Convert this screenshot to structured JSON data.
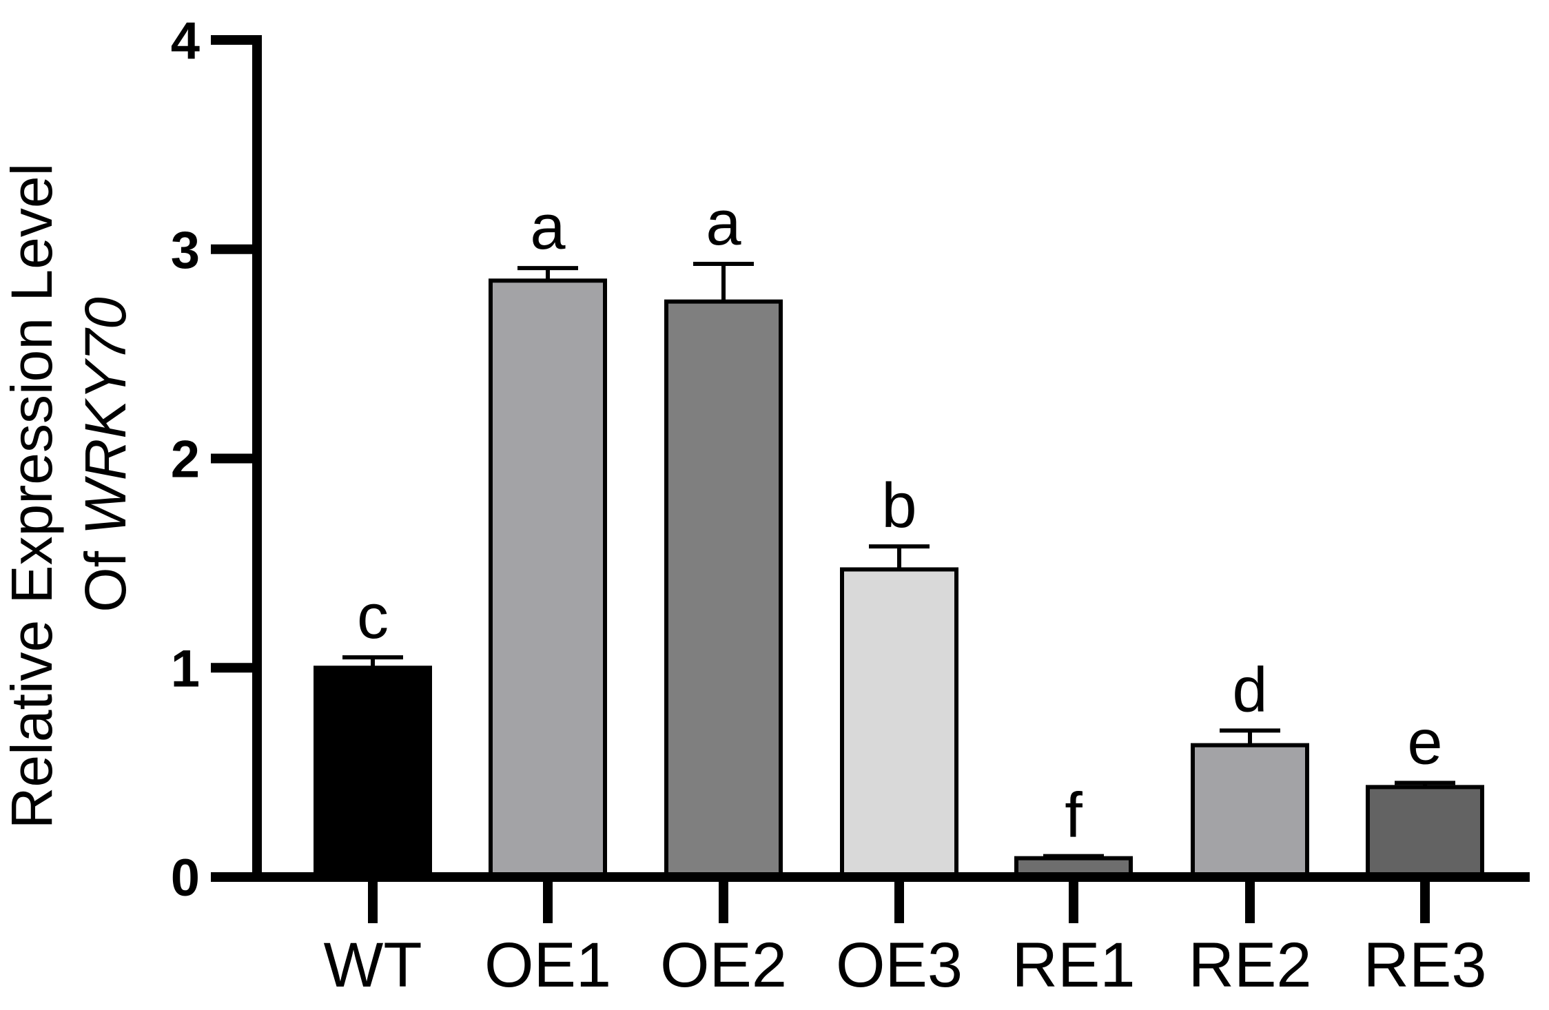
{
  "chart_data": {
    "type": "bar",
    "categories": [
      "WT",
      "OE1",
      "OE2",
      "OE3",
      "RE1",
      "RE2",
      "RE3"
    ],
    "values": [
      1.0,
      2.85,
      2.75,
      1.47,
      0.09,
      0.63,
      0.43
    ],
    "errors": [
      0.05,
      0.06,
      0.18,
      0.11,
      0.01,
      0.07,
      0.02
    ],
    "letters": [
      "c",
      "a",
      "a",
      "b",
      "f",
      "d",
      "e"
    ],
    "colors": [
      "#000000",
      "#a3a3a6",
      "#7f7f7f",
      "#d9d9d9",
      "#6e6e6e",
      "#a3a3a6",
      "#636363"
    ],
    "ylabel_line1": "Relative Expression Level",
    "ylabel_line2_prefix": "Of ",
    "ylabel_line2_italic": "WRKY70",
    "yticks": [
      "0",
      "1",
      "2",
      "3",
      "4"
    ],
    "ylim": [
      0,
      4
    ],
    "grid": false,
    "legend": "none"
  }
}
